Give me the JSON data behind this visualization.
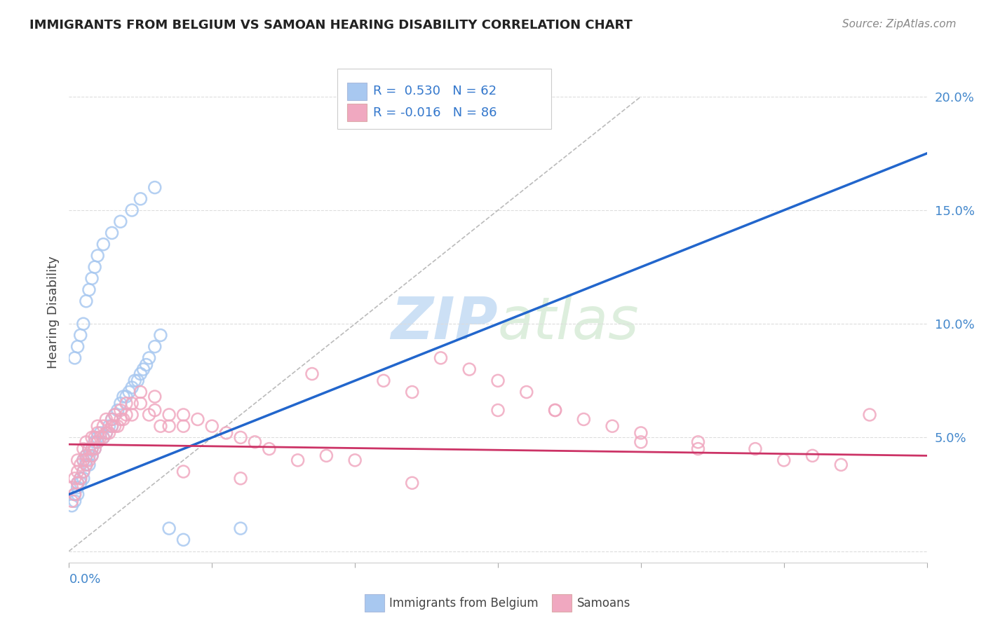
{
  "title": "IMMIGRANTS FROM BELGIUM VS SAMOAN HEARING DISABILITY CORRELATION CHART",
  "source": "Source: ZipAtlas.com",
  "ylabel": "Hearing Disability",
  "r_belgium": 0.53,
  "n_belgium": 62,
  "r_samoan": -0.016,
  "n_samoan": 86,
  "xlim": [
    0.0,
    0.3
  ],
  "ylim": [
    -0.005,
    0.215
  ],
  "color_belgium": "#a8c8f0",
  "color_samoan": "#f0a8c0",
  "color_trendline_belgium": "#2266cc",
  "color_trendline_samoan": "#cc3366",
  "color_diagonal": "#bbbbbb",
  "watermark_color": "#ddeeff",
  "belgium_x": [
    0.001,
    0.002,
    0.002,
    0.003,
    0.003,
    0.003,
    0.004,
    0.004,
    0.005,
    0.005,
    0.005,
    0.006,
    0.006,
    0.006,
    0.007,
    0.007,
    0.007,
    0.008,
    0.008,
    0.009,
    0.009,
    0.01,
    0.01,
    0.011,
    0.012,
    0.013,
    0.014,
    0.015,
    0.015,
    0.016,
    0.017,
    0.018,
    0.019,
    0.02,
    0.021,
    0.022,
    0.023,
    0.024,
    0.025,
    0.026,
    0.027,
    0.028,
    0.03,
    0.032,
    0.002,
    0.003,
    0.004,
    0.005,
    0.006,
    0.007,
    0.008,
    0.009,
    0.01,
    0.012,
    0.015,
    0.018,
    0.022,
    0.025,
    0.03,
    0.035,
    0.04,
    0.06
  ],
  "belgium_y": [
    0.02,
    0.022,
    0.025,
    0.025,
    0.028,
    0.03,
    0.03,
    0.032,
    0.032,
    0.035,
    0.04,
    0.038,
    0.04,
    0.042,
    0.038,
    0.042,
    0.045,
    0.042,
    0.045,
    0.045,
    0.048,
    0.048,
    0.05,
    0.052,
    0.05,
    0.052,
    0.055,
    0.055,
    0.058,
    0.06,
    0.062,
    0.065,
    0.068,
    0.068,
    0.07,
    0.072,
    0.075,
    0.075,
    0.078,
    0.08,
    0.082,
    0.085,
    0.09,
    0.095,
    0.085,
    0.09,
    0.095,
    0.1,
    0.11,
    0.115,
    0.12,
    0.125,
    0.13,
    0.135,
    0.14,
    0.145,
    0.15,
    0.155,
    0.16,
    0.01,
    0.005,
    0.01
  ],
  "samoan_x": [
    0.001,
    0.001,
    0.002,
    0.002,
    0.003,
    0.003,
    0.003,
    0.004,
    0.004,
    0.005,
    0.005,
    0.005,
    0.006,
    0.006,
    0.006,
    0.007,
    0.007,
    0.008,
    0.008,
    0.008,
    0.009,
    0.009,
    0.01,
    0.01,
    0.01,
    0.011,
    0.012,
    0.012,
    0.013,
    0.013,
    0.014,
    0.015,
    0.015,
    0.016,
    0.016,
    0.017,
    0.018,
    0.018,
    0.019,
    0.02,
    0.02,
    0.022,
    0.022,
    0.025,
    0.025,
    0.028,
    0.03,
    0.03,
    0.032,
    0.035,
    0.035,
    0.04,
    0.04,
    0.045,
    0.05,
    0.055,
    0.06,
    0.065,
    0.07,
    0.08,
    0.085,
    0.09,
    0.1,
    0.11,
    0.12,
    0.13,
    0.14,
    0.15,
    0.16,
    0.17,
    0.18,
    0.19,
    0.2,
    0.22,
    0.24,
    0.26,
    0.15,
    0.2,
    0.22,
    0.25,
    0.27,
    0.04,
    0.06,
    0.12,
    0.17,
    0.28
  ],
  "samoan_y": [
    0.022,
    0.028,
    0.025,
    0.032,
    0.03,
    0.035,
    0.04,
    0.032,
    0.038,
    0.035,
    0.04,
    0.045,
    0.038,
    0.042,
    0.048,
    0.04,
    0.045,
    0.042,
    0.045,
    0.05,
    0.045,
    0.05,
    0.048,
    0.052,
    0.055,
    0.05,
    0.05,
    0.055,
    0.052,
    0.058,
    0.052,
    0.055,
    0.058,
    0.055,
    0.06,
    0.055,
    0.058,
    0.062,
    0.058,
    0.06,
    0.065,
    0.06,
    0.065,
    0.065,
    0.07,
    0.06,
    0.062,
    0.068,
    0.055,
    0.055,
    0.06,
    0.055,
    0.06,
    0.058,
    0.055,
    0.052,
    0.05,
    0.048,
    0.045,
    0.04,
    0.078,
    0.042,
    0.04,
    0.075,
    0.07,
    0.085,
    0.08,
    0.075,
    0.07,
    0.062,
    0.058,
    0.055,
    0.052,
    0.048,
    0.045,
    0.042,
    0.062,
    0.048,
    0.045,
    0.04,
    0.038,
    0.035,
    0.032,
    0.03,
    0.062,
    0.06
  ]
}
